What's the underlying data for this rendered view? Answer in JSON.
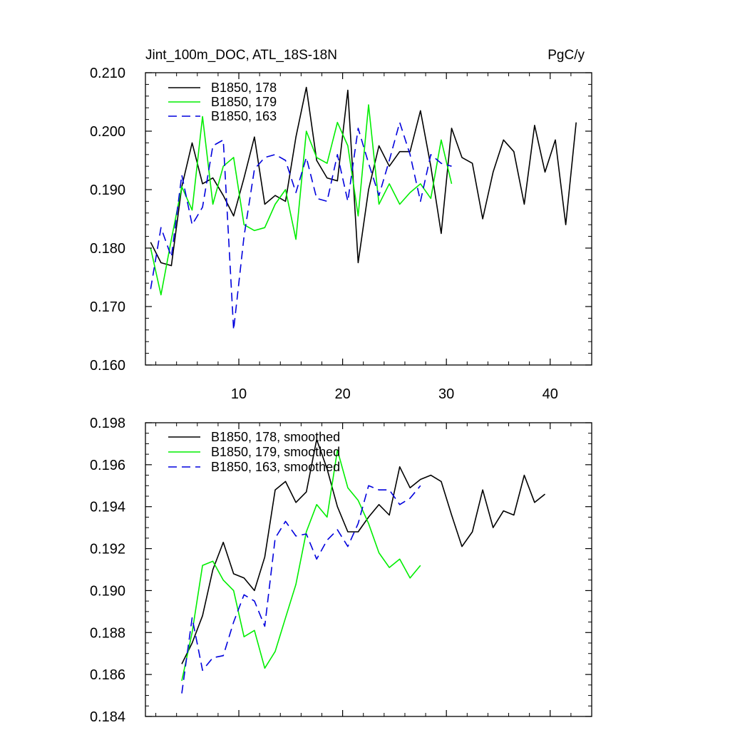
{
  "chart_data": [
    {
      "type": "line",
      "title_left": "Jint_100m_DOC, ATL_18S-18N",
      "title_right": "PgC/y",
      "xlim": [
        1,
        44
      ],
      "ylim": [
        0.16,
        0.21
      ],
      "yticks": [
        "0.160",
        "0.170",
        "0.180",
        "0.190",
        "0.200",
        "0.210"
      ],
      "xticks": [
        "10",
        "20",
        "30",
        "40"
      ],
      "series": [
        {
          "name": "B1850, 178",
          "color": "#000000",
          "dash": "",
          "x": [
            1.5,
            2.5,
            3.5,
            4.5,
            5.5,
            6.5,
            7.5,
            8.5,
            9.5,
            10.5,
            11.5,
            12.5,
            13.5,
            14.5,
            15.5,
            16.5,
            17.5,
            18.5,
            19.5,
            20.5,
            21.5,
            22.5,
            23.5,
            24.5,
            25.5,
            26.5,
            27.5,
            28.5,
            29.5,
            30.5,
            31.5,
            32.5,
            33.5,
            34.5,
            35.5,
            36.5,
            37.5,
            38.5,
            39.5,
            40.5,
            41.5,
            42.5
          ],
          "y": [
            0.181,
            0.1775,
            0.177,
            0.1905,
            0.198,
            0.191,
            0.192,
            0.189,
            0.1855,
            0.192,
            0.199,
            0.1875,
            0.189,
            0.188,
            0.199,
            0.2075,
            0.195,
            0.192,
            0.1915,
            0.207,
            0.1775,
            0.19,
            0.1975,
            0.194,
            0.1965,
            0.1965,
            0.2035,
            0.194,
            0.1825,
            0.2005,
            0.1955,
            0.1945,
            0.185,
            0.193,
            0.1985,
            0.1965,
            0.1875,
            0.201,
            0.193,
            0.1985,
            0.184,
            0.2015
          ]
        },
        {
          "name": "B1850, 179",
          "color": "#00ee00",
          "dash": "",
          "x": [
            1.5,
            2.5,
            3.5,
            4.5,
            5.5,
            6.5,
            7.5,
            8.5,
            9.5,
            10.5,
            11.5,
            12.5,
            13.5,
            14.5,
            15.5,
            16.5,
            17.5,
            18.5,
            19.5,
            20.5,
            21.5,
            22.5,
            23.5,
            24.5,
            25.5,
            26.5,
            27.5,
            28.5,
            29.5,
            30.5
          ],
          "y": [
            0.18,
            0.172,
            0.1815,
            0.1905,
            0.1865,
            0.2025,
            0.1875,
            0.194,
            0.1955,
            0.184,
            0.183,
            0.1835,
            0.1875,
            0.19,
            0.1815,
            0.2,
            0.1955,
            0.1945,
            0.2015,
            0.1975,
            0.1855,
            0.2045,
            0.1875,
            0.191,
            0.1875,
            0.1895,
            0.191,
            0.1885,
            0.1985,
            0.191
          ]
        },
        {
          "name": "B1850, 163",
          "color": "#0000dd",
          "dash": "12,7",
          "x": [
            1.5,
            2.5,
            3.5,
            4.5,
            5.5,
            6.5,
            7.5,
            8.5,
            9.5,
            10.5,
            11.5,
            12.5,
            13.5,
            14.5,
            15.5,
            16.5,
            17.5,
            18.5,
            19.5,
            20.5,
            21.5,
            22.5,
            23.5,
            24.5,
            25.5,
            26.5,
            27.5,
            28.5,
            29.5,
            30.5
          ],
          "y": [
            0.173,
            0.1835,
            0.1785,
            0.1925,
            0.184,
            0.187,
            0.1975,
            0.1985,
            0.166,
            0.182,
            0.1935,
            0.1955,
            0.196,
            0.195,
            0.1895,
            0.1955,
            0.1885,
            0.188,
            0.196,
            0.188,
            0.2005,
            0.1945,
            0.189,
            0.195,
            0.2015,
            0.196,
            0.188,
            0.196,
            0.1945,
            0.194
          ]
        }
      ]
    },
    {
      "type": "line",
      "xlim": [
        1,
        44
      ],
      "ylim": [
        0.184,
        0.198
      ],
      "yticks": [
        "0.184",
        "0.186",
        "0.188",
        "0.190",
        "0.192",
        "0.194",
        "0.196",
        "0.198"
      ],
      "series": [
        {
          "name": "B1850, 178, smoothed",
          "color": "#000000",
          "dash": "",
          "x": [
            4.5,
            5.5,
            6.5,
            7.5,
            8.5,
            9.5,
            10.5,
            11.5,
            12.5,
            13.5,
            14.5,
            15.5,
            16.5,
            17.5,
            18.5,
            19.5,
            20.5,
            21.5,
            22.5,
            23.5,
            24.5,
            25.5,
            26.5,
            27.5,
            28.5,
            29.5,
            30.5,
            31.5,
            32.5,
            33.5,
            34.5,
            35.5,
            36.5,
            37.5,
            38.5,
            39.5
          ],
          "y": [
            0.1865,
            0.1875,
            0.1888,
            0.191,
            0.1923,
            0.1908,
            0.1906,
            0.19,
            0.1916,
            0.1948,
            0.1952,
            0.1942,
            0.1947,
            0.1972,
            0.1958,
            0.194,
            0.1928,
            0.1928,
            0.1935,
            0.1941,
            0.1936,
            0.1959,
            0.1949,
            0.1953,
            0.1955,
            0.1952,
            0.1936,
            0.1921,
            0.1928,
            0.1948,
            0.193,
            0.1938,
            0.1936,
            0.1955,
            0.1942,
            0.1946
          ]
        },
        {
          "name": "B1850, 179, smoothed",
          "color": "#00ee00",
          "dash": "",
          "x": [
            4.5,
            5.5,
            6.5,
            7.5,
            8.5,
            9.5,
            10.5,
            11.5,
            12.5,
            13.5,
            14.5,
            15.5,
            16.5,
            17.5,
            18.5,
            19.5,
            20.5,
            21.5,
            22.5,
            23.5,
            24.5,
            25.5,
            26.5,
            27.5
          ],
          "y": [
            0.1857,
            0.188,
            0.1912,
            0.1914,
            0.1905,
            0.19,
            0.1878,
            0.1881,
            0.1863,
            0.1871,
            0.1887,
            0.1903,
            0.1928,
            0.1941,
            0.1935,
            0.1967,
            0.1949,
            0.1943,
            0.1932,
            0.1918,
            0.1911,
            0.1915,
            0.1906,
            0.1912
          ]
        },
        {
          "name": "B1850, 163, smoothed",
          "color": "#0000dd",
          "dash": "12,7",
          "x": [
            4.5,
            5.5,
            6.5,
            7.5,
            8.5,
            9.5,
            10.5,
            11.5,
            12.5,
            13.5,
            14.5,
            15.5,
            16.5,
            17.5,
            18.5,
            19.5,
            20.5,
            21.5,
            22.5,
            23.5,
            24.5,
            25.5,
            26.5,
            27.5
          ],
          "y": [
            0.1851,
            0.1887,
            0.1862,
            0.1868,
            0.1869,
            0.1885,
            0.1898,
            0.1895,
            0.1883,
            0.1925,
            0.1933,
            0.1926,
            0.1927,
            0.1915,
            0.1924,
            0.1929,
            0.1921,
            0.1932,
            0.195,
            0.1948,
            0.1948,
            0.1941,
            0.1944,
            0.195
          ]
        }
      ]
    }
  ]
}
